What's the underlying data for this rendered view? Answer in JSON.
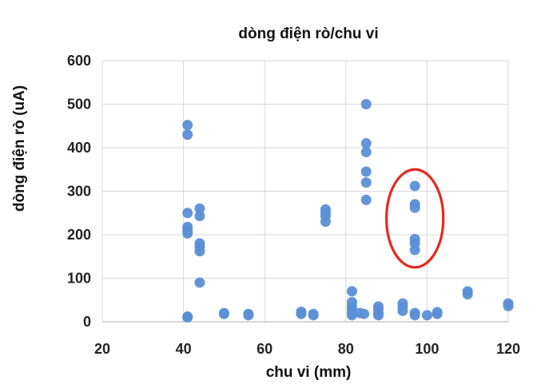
{
  "chart_data": {
    "type": "scatter",
    "title": "dòng điện rò/chu vi",
    "xlabel": "chu vi  (mm)",
    "ylabel": "dòng điện rò  (uA)",
    "xlim": [
      20,
      120
    ],
    "ylim": [
      0,
      600
    ],
    "xticks": [
      "20",
      "40",
      "60",
      "80",
      "100",
      "120"
    ],
    "yticks": [
      "0",
      "100",
      "200",
      "300",
      "400",
      "500",
      "600"
    ],
    "grid": true,
    "marker_color": "#5b8fd6",
    "highlight_color": "#e8281c",
    "highlight_region": {
      "x": [
        90,
        104
      ],
      "y": [
        125,
        350
      ]
    },
    "series": [
      {
        "points": [
          [
            41,
            452
          ],
          [
            41,
            430
          ],
          [
            41,
            250
          ],
          [
            41,
            218
          ],
          [
            41,
            210
          ],
          [
            41,
            203
          ],
          [
            41,
            12
          ],
          [
            41,
            10
          ],
          [
            44,
            260
          ],
          [
            44,
            243
          ],
          [
            44,
            180
          ],
          [
            44,
            172
          ],
          [
            44,
            162
          ],
          [
            44,
            90
          ],
          [
            50,
            20
          ],
          [
            50,
            18
          ],
          [
            56,
            18
          ],
          [
            56,
            15
          ],
          [
            69,
            23
          ],
          [
            69,
            18
          ],
          [
            72,
            18
          ],
          [
            72,
            15
          ],
          [
            75,
            258
          ],
          [
            75,
            250
          ],
          [
            75,
            243
          ],
          [
            75,
            230
          ],
          [
            81.5,
            70
          ],
          [
            81.5,
            45
          ],
          [
            81.5,
            35
          ],
          [
            81.5,
            28
          ],
          [
            81.5,
            20
          ],
          [
            81.5,
            15
          ],
          [
            83.5,
            20
          ],
          [
            84.5,
            18
          ],
          [
            85,
            500
          ],
          [
            85,
            410
          ],
          [
            85,
            390
          ],
          [
            85,
            345
          ],
          [
            85,
            320
          ],
          [
            85,
            280
          ],
          [
            88,
            35
          ],
          [
            88,
            28
          ],
          [
            88,
            20
          ],
          [
            88,
            15
          ],
          [
            94,
            42
          ],
          [
            94,
            35
          ],
          [
            94,
            25
          ],
          [
            97,
            312
          ],
          [
            97,
            270
          ],
          [
            97,
            262
          ],
          [
            97,
            190
          ],
          [
            97,
            180
          ],
          [
            97,
            165
          ],
          [
            97,
            20
          ],
          [
            97,
            15
          ],
          [
            100,
            15
          ],
          [
            102.5,
            22
          ],
          [
            102.5,
            18
          ],
          [
            110,
            70
          ],
          [
            110,
            63
          ],
          [
            120,
            42
          ],
          [
            120,
            36
          ]
        ]
      }
    ]
  }
}
